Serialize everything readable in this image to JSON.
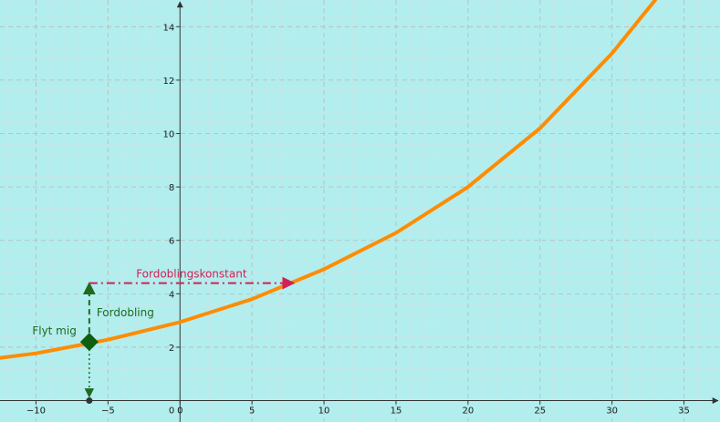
{
  "colors": {
    "background": "#b2eeee",
    "grid_major": "#b8b8b8",
    "grid_minor": "#cfe3e3",
    "curve": "#ff8c00",
    "point": "#0f5f0f",
    "doubling_arrow": "#1e6a1e",
    "constant_arrow": "#d21f55",
    "axis": "#333333"
  },
  "chart_data": {
    "type": "line",
    "xlim": [
      -12.5,
      37.5
    ],
    "ylim": [
      -0.8,
      15
    ],
    "x_ticks": [
      -10,
      -5,
      0,
      5,
      10,
      15,
      20,
      25,
      30,
      35
    ],
    "y_ticks": [
      2,
      4,
      6,
      8,
      10,
      12,
      14
    ],
    "origin_label": "0",
    "grid": true,
    "series": [
      {
        "x": [
          -12.5,
          -10,
          -5,
          0,
          5,
          10,
          15,
          20,
          25,
          30,
          33
        ],
        "y": [
          1.6,
          1.77,
          2.28,
          2.94,
          3.8,
          4.92,
          6.28,
          8.0,
          10.2,
          13.0,
          15.0
        ]
      }
    ],
    "movable_point": {
      "x": -6.3,
      "y": 2.2,
      "label": "Flyt mig"
    },
    "doubling_annotation": {
      "x": -6.3,
      "y_from": 2.2,
      "y_to": 4.4,
      "label": "Fordobling"
    },
    "doubling_constant_annotation": {
      "y": 4.4,
      "x_from": -6.3,
      "x_to": 7.9,
      "label": "Fordoblingskonstant"
    }
  }
}
